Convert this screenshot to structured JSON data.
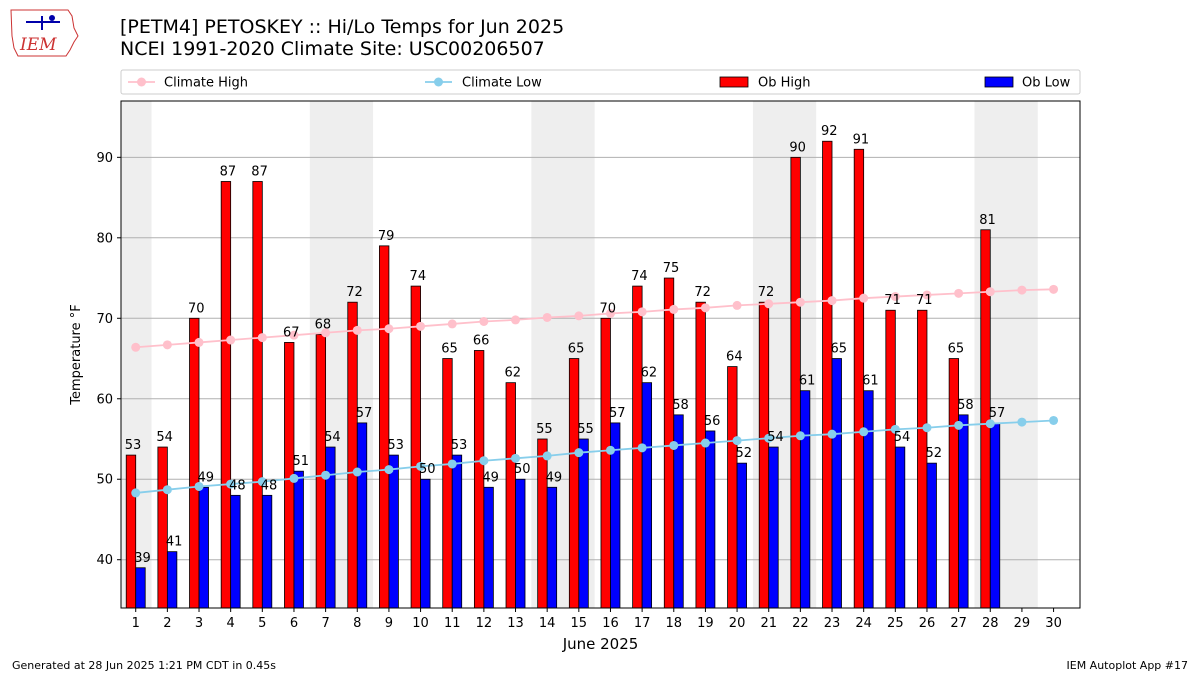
{
  "header": {
    "title_line1": "[PETM4] PETOSKEY :: Hi/Lo Temps for Jun 2025",
    "title_line2": "NCEI 1991-2020 Climate Site: USC00206507",
    "logo_text": "IEM"
  },
  "footer": {
    "generated": "Generated at 28 Jun 2025 1:21 PM CDT in 0.45s",
    "app": "IEM Autoplot App #17"
  },
  "colors": {
    "climate_high": "#ffc0cb",
    "climate_low": "#87ceeb",
    "ob_high": "#ff0000",
    "ob_low": "#0000ff",
    "weekend_band": "#eeeeee"
  },
  "chart_data": {
    "type": "bar",
    "xlabel": "June 2025",
    "ylabel": "Temperature °F",
    "ylim": [
      34,
      97
    ],
    "yticks": [
      40,
      50,
      60,
      70,
      80,
      90
    ],
    "grid": "horizontal",
    "legend_position": "top",
    "x": [
      1,
      2,
      3,
      4,
      5,
      6,
      7,
      8,
      9,
      10,
      11,
      12,
      13,
      14,
      15,
      16,
      17,
      18,
      19,
      20,
      21,
      22,
      23,
      24,
      25,
      26,
      27,
      28,
      29,
      30
    ],
    "weekend_bands": [
      [
        1,
        1
      ],
      [
        7,
        8
      ],
      [
        14,
        15
      ],
      [
        21,
        22
      ],
      [
        28,
        29
      ]
    ],
    "series": [
      {
        "name": "Climate High",
        "kind": "line",
        "values": [
          66.4,
          66.7,
          67.0,
          67.3,
          67.6,
          67.9,
          68.2,
          68.5,
          68.7,
          69.0,
          69.3,
          69.6,
          69.8,
          70.1,
          70.3,
          70.6,
          70.8,
          71.1,
          71.3,
          71.6,
          71.8,
          72.0,
          72.2,
          72.5,
          72.7,
          72.9,
          73.1,
          73.3,
          73.5,
          73.6
        ]
      },
      {
        "name": "Climate Low",
        "kind": "line",
        "values": [
          48.3,
          48.7,
          49.1,
          49.4,
          49.7,
          50.1,
          50.5,
          50.9,
          51.2,
          51.6,
          51.9,
          52.3,
          52.6,
          52.9,
          53.3,
          53.6,
          53.9,
          54.2,
          54.5,
          54.8,
          55.1,
          55.4,
          55.6,
          55.9,
          56.2,
          56.4,
          56.7,
          56.9,
          57.1,
          57.3
        ]
      },
      {
        "name": "Ob High",
        "kind": "bar",
        "values": [
          53,
          54,
          70,
          87,
          87,
          67,
          68,
          72,
          79,
          74,
          65,
          66,
          62,
          55,
          65,
          70,
          74,
          75,
          72,
          64,
          72,
          90,
          92,
          91,
          71,
          71,
          65,
          81,
          null,
          null
        ]
      },
      {
        "name": "Ob Low",
        "kind": "bar",
        "values": [
          39,
          41,
          49,
          48,
          48,
          51,
          54,
          57,
          53,
          50,
          53,
          49,
          50,
          49,
          55,
          57,
          62,
          58,
          56,
          52,
          54,
          61,
          65,
          61,
          54,
          52,
          58,
          57,
          null,
          null
        ]
      }
    ]
  }
}
